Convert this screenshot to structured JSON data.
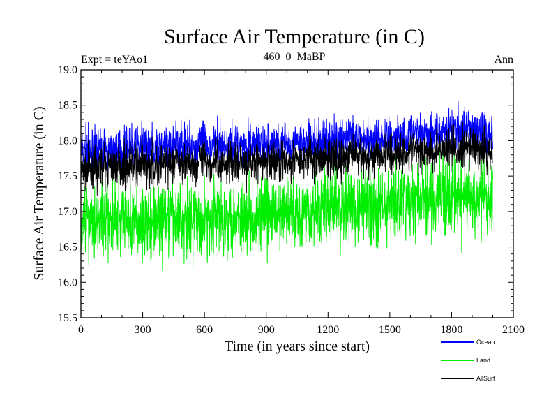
{
  "chart_data": {
    "type": "line",
    "title": "Surface Air Temperature (in C)",
    "subtitle_left": "Expt = teYAo1",
    "subtitle_center": "460_0_MaBP",
    "subtitle_right": "Ann",
    "xlabel": "Time (in years since start)",
    "ylabel": "Surface Air Temperature (in C)",
    "xlim": [
      0,
      2100
    ],
    "ylim": [
      15.5,
      19.0
    ],
    "xticks": [
      "0",
      "300",
      "600",
      "900",
      "1200",
      "1500",
      "1800",
      "2100"
    ],
    "yticks": [
      "15.5",
      "16.0",
      "16.5",
      "17.0",
      "17.5",
      "18.0",
      "18.5",
      "19.0"
    ],
    "legend_position": "bottom-right",
    "n_years": 2000,
    "noise_seed": 7,
    "series": [
      {
        "name": "Ocean",
        "color": "#0000ff",
        "x": [
          0,
          300,
          600,
          900,
          1200,
          1500,
          1800,
          2000
        ],
        "mean": [
          17.85,
          17.9,
          17.95,
          17.95,
          18.0,
          18.05,
          18.15,
          18.1
        ],
        "amplitude": 0.18
      },
      {
        "name": "Land",
        "color": "#00ee00",
        "x": [
          0,
          300,
          600,
          900,
          1200,
          1500,
          1800,
          2000
        ],
        "mean": [
          16.9,
          16.85,
          16.9,
          16.95,
          17.05,
          17.1,
          17.2,
          17.15
        ],
        "amplitude": 0.26
      },
      {
        "name": "AllSurf",
        "color": "#000000",
        "x": [
          0,
          300,
          600,
          900,
          1200,
          1500,
          1800,
          2000
        ],
        "mean": [
          17.6,
          17.65,
          17.7,
          17.7,
          17.75,
          17.8,
          17.9,
          17.85
        ],
        "amplitude": 0.17
      }
    ]
  }
}
